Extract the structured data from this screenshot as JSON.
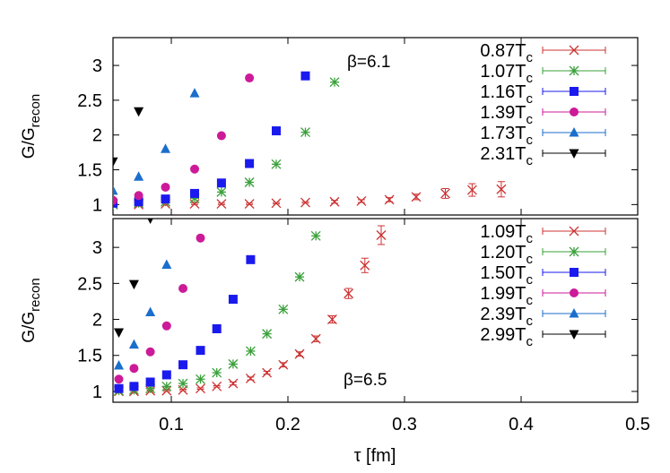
{
  "chart_data": [
    {
      "type": "scatter",
      "panel": "top",
      "annotation": "β=6.1",
      "ylabel_main": "G/G",
      "ylabel_sub": "recon",
      "xlim": [
        0.05,
        0.5
      ],
      "ylim": [
        0.85,
        3.4
      ],
      "yticks": [
        "1",
        "1.5",
        "2",
        "2.5",
        "3"
      ],
      "ytick_values": [
        1,
        1.5,
        2,
        2.5,
        3
      ],
      "grid": false,
      "legend_position": "top-right",
      "series": [
        {
          "name": "0.87",
          "name_sub": "c",
          "color": "#cc3333",
          "marker": "x",
          "x": [
            0.05,
            0.072,
            0.095,
            0.12,
            0.143,
            0.167,
            0.19,
            0.215,
            0.24,
            0.263,
            0.287,
            0.31,
            0.335,
            0.358,
            0.383
          ],
          "y": [
            1.0,
            1.0,
            1.01,
            1.01,
            1.01,
            1.01,
            1.02,
            1.03,
            1.04,
            1.05,
            1.07,
            1.11,
            1.16,
            1.21,
            1.22
          ],
          "err": [
            0.01,
            0.01,
            0.01,
            0.01,
            0.01,
            0.01,
            0.01,
            0.01,
            0.02,
            0.02,
            0.03,
            0.04,
            0.07,
            0.09,
            0.11
          ]
        },
        {
          "name": "1.07",
          "name_sub": "c",
          "color": "#3aa03a",
          "marker": "star",
          "x": [
            0.05,
            0.072,
            0.095,
            0.12,
            0.143,
            0.167,
            0.19,
            0.215,
            0.24
          ],
          "y": [
            1.0,
            1.02,
            1.04,
            1.09,
            1.18,
            1.32,
            1.58,
            2.04,
            2.76
          ],
          "err": [
            0,
            0,
            0,
            0,
            0,
            0,
            0,
            0,
            0
          ]
        },
        {
          "name": "1.16",
          "name_sub": "c",
          "color": "#1a1aee",
          "marker": "square",
          "x": [
            0.05,
            0.072,
            0.095,
            0.12,
            0.143,
            0.167,
            0.19,
            0.215
          ],
          "y": [
            1.02,
            1.04,
            1.08,
            1.16,
            1.31,
            1.59,
            2.06,
            2.85
          ],
          "err": [
            0,
            0,
            0,
            0,
            0,
            0,
            0,
            0
          ]
        },
        {
          "name": "1.39",
          "name_sub": "c",
          "color": "#cc1a99",
          "marker": "circle",
          "x": [
            0.05,
            0.072,
            0.095,
            0.12,
            0.143,
            0.167
          ],
          "y": [
            1.06,
            1.13,
            1.25,
            1.51,
            1.99,
            2.82
          ],
          "err": [
            0,
            0,
            0,
            0,
            0,
            0
          ]
        },
        {
          "name": "1.73",
          "name_sub": "c",
          "color": "#1a6ecc",
          "marker": "triangle-up",
          "x": [
            0.05,
            0.072,
            0.095,
            0.12
          ],
          "y": [
            1.2,
            1.4,
            1.8,
            2.6
          ],
          "err": [
            0,
            0,
            0,
            0
          ]
        },
        {
          "name": "2.31",
          "name_sub": "c",
          "color": "#000000",
          "marker": "triangle-down",
          "x": [
            0.05,
            0.072
          ],
          "y": [
            1.62,
            2.34
          ],
          "err": [
            0,
            0
          ]
        }
      ]
    },
    {
      "type": "scatter",
      "panel": "bottom",
      "annotation": "β=6.5",
      "ylabel_main": "G/G",
      "ylabel_sub": "recon",
      "xlabel": "τ [fm]",
      "xlim": [
        0.05,
        0.5
      ],
      "ylim": [
        0.85,
        3.4
      ],
      "xticks": [
        "0.1",
        "0.2",
        "0.3",
        "0.4",
        "0.5"
      ],
      "xtick_values": [
        0.1,
        0.2,
        0.3,
        0.4,
        0.5
      ],
      "yticks": [
        "1",
        "1.5",
        "2",
        "2.5",
        "3"
      ],
      "ytick_values": [
        1,
        1.5,
        2,
        2.5,
        3
      ],
      "grid": false,
      "legend_position": "top-right",
      "series": [
        {
          "name": "1.09",
          "name_sub": "c",
          "color": "#cc3333",
          "marker": "x",
          "x": [
            0.055,
            0.068,
            0.082,
            0.096,
            0.11,
            0.125,
            0.139,
            0.153,
            0.168,
            0.182,
            0.196,
            0.21,
            0.224,
            0.238,
            0.252,
            0.266,
            0.28
          ],
          "y": [
            1.0,
            1.0,
            1.01,
            1.01,
            1.02,
            1.04,
            1.07,
            1.11,
            1.18,
            1.26,
            1.37,
            1.52,
            1.73,
            2.0,
            2.36,
            2.75,
            3.17
          ],
          "err": [
            0.01,
            0.01,
            0.01,
            0.01,
            0.01,
            0.01,
            0.01,
            0.02,
            0.02,
            0.02,
            0.03,
            0.03,
            0.04,
            0.05,
            0.07,
            0.1,
            0.13
          ]
        },
        {
          "name": "1.20",
          "name_sub": "c",
          "color": "#3aa03a",
          "marker": "star",
          "x": [
            0.055,
            0.068,
            0.082,
            0.096,
            0.11,
            0.125,
            0.139,
            0.153,
            0.168,
            0.182,
            0.196,
            0.21,
            0.224
          ],
          "y": [
            1.01,
            1.02,
            1.04,
            1.07,
            1.11,
            1.17,
            1.26,
            1.38,
            1.56,
            1.8,
            2.14,
            2.59,
            3.16
          ],
          "err": [
            0,
            0,
            0,
            0,
            0,
            0,
            0,
            0,
            0,
            0,
            0,
            0,
            0
          ]
        },
        {
          "name": "1.50",
          "name_sub": "c",
          "color": "#1a1aee",
          "marker": "square",
          "x": [
            0.055,
            0.068,
            0.082,
            0.096,
            0.11,
            0.125,
            0.139,
            0.153,
            0.168
          ],
          "y": [
            1.04,
            1.07,
            1.13,
            1.23,
            1.37,
            1.57,
            1.87,
            2.28,
            2.83
          ],
          "err": [
            0,
            0,
            0,
            0,
            0,
            0,
            0,
            0,
            0
          ]
        },
        {
          "name": "1.99",
          "name_sub": "c",
          "color": "#cc1a99",
          "marker": "circle",
          "x": [
            0.055,
            0.068,
            0.082,
            0.096,
            0.11,
            0.125
          ],
          "y": [
            1.17,
            1.32,
            1.55,
            1.91,
            2.43,
            3.13
          ],
          "err": [
            0,
            0,
            0,
            0,
            0,
            0
          ]
        },
        {
          "name": "2.39",
          "name_sub": "c",
          "color": "#1a6ecc",
          "marker": "triangle-up",
          "x": [
            0.055,
            0.068,
            0.082,
            0.096
          ],
          "y": [
            1.36,
            1.65,
            2.1,
            2.76
          ],
          "err": [
            0,
            0,
            0,
            0
          ]
        },
        {
          "name": "2.99",
          "name_sub": "c",
          "color": "#000000",
          "marker": "triangle-down",
          "x": [
            0.055,
            0.068,
            0.082
          ],
          "y": [
            1.82,
            2.49,
            3.4
          ],
          "err": [
            0,
            0,
            0
          ]
        }
      ]
    }
  ],
  "legend_T_label": "T"
}
